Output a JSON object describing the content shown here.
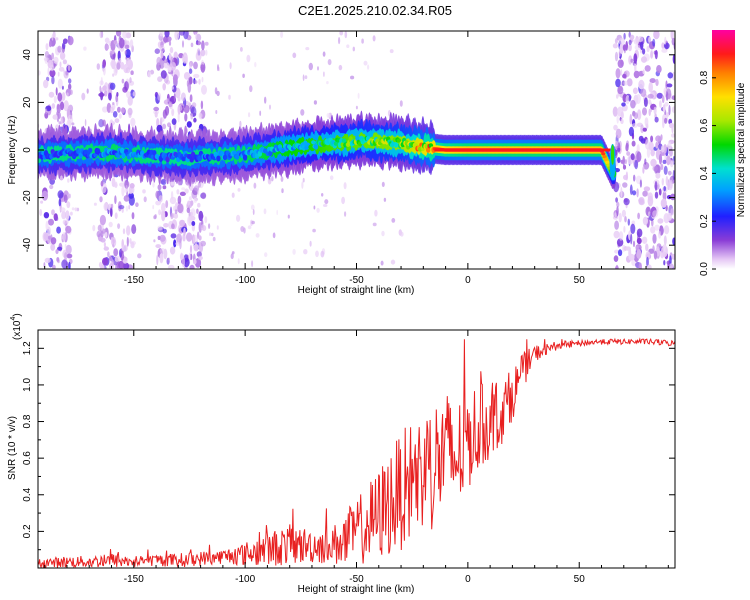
{
  "title": "C2E1.2025.210.02.34.R05",
  "chart_data": [
    {
      "type": "heatmap",
      "xlabel": "Height of straight line (km)",
      "ylabel": "Frequency (Hz)",
      "xlim": [
        -193,
        93
      ],
      "ylim": [
        -50,
        50
      ],
      "xticks": [
        -150,
        -100,
        -50,
        0,
        50
      ],
      "yticks": [
        -40,
        -20,
        0,
        20,
        40
      ],
      "xticklabels": [
        "-150",
        "-100",
        "-50",
        "0",
        "50"
      ],
      "yticklabels": [
        "-40",
        "-20",
        "0",
        "20",
        "40"
      ],
      "colorbar": {
        "label": "Normalized spectral amplitude",
        "range": [
          0,
          1
        ],
        "ticks": [
          0.0,
          0.2,
          0.4,
          0.6,
          0.8
        ],
        "ticklabels": [
          "0.0",
          "0.2",
          "0.4",
          "0.6",
          "0.8"
        ]
      },
      "ridge": {
        "x": [
          -193,
          -160,
          -130,
          -100,
          -80,
          -60,
          -45,
          -30,
          -20,
          -10,
          0,
          20,
          40,
          60,
          65
        ],
        "y": [
          -2,
          -1,
          -3,
          -2,
          1,
          3,
          4,
          3,
          1,
          0,
          0,
          0,
          0,
          0,
          -10
        ],
        "amplitude": [
          0.3,
          0.35,
          0.3,
          0.35,
          0.45,
          0.55,
          0.6,
          0.65,
          0.85,
          0.9,
          0.95,
          0.95,
          0.95,
          0.95,
          0.5
        ]
      },
      "noise_bands": [
        {
          "x_range": [
            -190,
            -178
          ]
        },
        {
          "x_range": [
            -165,
            -150
          ]
        },
        {
          "x_range": [
            -140,
            -118
          ]
        },
        {
          "x_range": [
            66,
            93
          ]
        }
      ]
    },
    {
      "type": "line",
      "xlabel": "Height of straight line (km)",
      "ylabel": "SNR (10 * v/v)",
      "y_multiplier": "(x10",
      "y_multiplier_exp": "4",
      "xlim": [
        -193,
        93
      ],
      "ylim": [
        0,
        1.3
      ],
      "xticks": [
        -150,
        -100,
        -50,
        0,
        50
      ],
      "yticks": [
        0.2,
        0.4,
        0.6,
        0.8,
        1.0,
        1.2
      ],
      "xticklabels": [
        "-150",
        "-100",
        "-50",
        "0",
        "50"
      ],
      "yticklabels": [
        "0.2",
        "0.4",
        "0.6",
        "0.8",
        "1.0",
        "1.2"
      ],
      "line_color": "#e82020",
      "series": [
        {
          "x": [
            -193,
            -180,
            -170,
            -160,
            -150,
            -140,
            -130,
            -120,
            -110,
            -100,
            -90,
            -80,
            -70,
            -60,
            -55,
            -50,
            -45,
            -40,
            -35,
            -30,
            -25,
            -20,
            -15,
            -10,
            -5,
            0,
            5,
            10,
            15,
            20,
            25,
            30,
            35,
            40,
            50,
            60,
            70,
            80,
            93
          ],
          "y": [
            0.03,
            0.04,
            0.04,
            0.05,
            0.04,
            0.05,
            0.05,
            0.06,
            0.07,
            0.09,
            0.12,
            0.15,
            0.14,
            0.15,
            0.18,
            0.24,
            0.28,
            0.34,
            0.42,
            0.48,
            0.55,
            0.6,
            0.64,
            0.7,
            0.66,
            0.76,
            0.82,
            0.84,
            0.88,
            0.98,
            1.1,
            1.18,
            1.2,
            1.22,
            1.23,
            1.24,
            1.24,
            1.24,
            1.23
          ],
          "spread": [
            0.03,
            0.04,
            0.04,
            0.05,
            0.04,
            0.04,
            0.05,
            0.05,
            0.05,
            0.08,
            0.12,
            0.14,
            0.12,
            0.14,
            0.2,
            0.22,
            0.28,
            0.32,
            0.38,
            0.4,
            0.42,
            0.44,
            0.46,
            0.44,
            0.4,
            0.36,
            0.3,
            0.26,
            0.22,
            0.18,
            0.12,
            0.06,
            0.04,
            0.03,
            0.02,
            0.02,
            0.02,
            0.02,
            0.02
          ]
        }
      ]
    }
  ]
}
